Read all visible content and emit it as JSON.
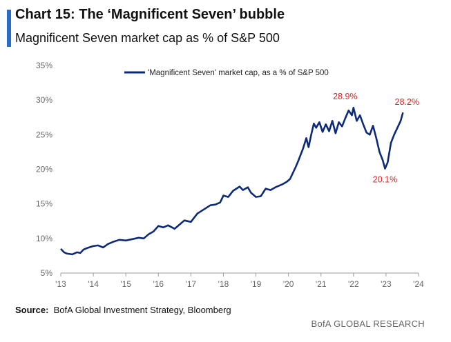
{
  "header": {
    "title": "Chart 15: The ‘Magnificent Seven’ bubble",
    "subtitle": "Magnificent Seven market cap as % of S&P 500"
  },
  "footer": {
    "source_label": "Source:",
    "source_text": "BofA Global Investment Strategy, Bloomberg",
    "brand": "BofA GLOBAL RESEARCH"
  },
  "colors": {
    "accent": "#2a6dc7",
    "line": "#0c2a78",
    "annotation": "#e02020"
  },
  "chart_data": {
    "type": "line",
    "title": "Chart 15: The ‘Magnificent Seven’ bubble",
    "subtitle": "Magnificent Seven market cap as % of S&P 500",
    "ylim": [
      5,
      35
    ],
    "yticks": [
      5,
      10,
      15,
      20,
      25,
      30,
      35
    ],
    "ytick_labels": [
      "5%",
      "10%",
      "15%",
      "20%",
      "25%",
      "30%",
      "35%"
    ],
    "xlim": [
      2013,
      2024
    ],
    "xticks": [
      2013,
      2014,
      2015,
      2016,
      2017,
      2018,
      2019,
      2020,
      2021,
      2022,
      2023,
      2024
    ],
    "xtick_labels": [
      "'13",
      "'14",
      "'15",
      "'16",
      "'17",
      "'18",
      "'19",
      "'20",
      "'21",
      "'22",
      "'23",
      "'24"
    ],
    "grid": false,
    "legend_position": "top",
    "series": [
      {
        "name": "'Magnificent Seven' market cap, as a % of S&P 500",
        "x": [
          2013.0,
          2013.1,
          2013.2,
          2013.35,
          2013.5,
          2013.6,
          2013.7,
          2013.8,
          2014.0,
          2014.15,
          2014.3,
          2014.45,
          2014.6,
          2014.8,
          2015.0,
          2015.2,
          2015.4,
          2015.55,
          2015.7,
          2015.85,
          2016.0,
          2016.15,
          2016.3,
          2016.5,
          2016.65,
          2016.8,
          2017.0,
          2017.2,
          2017.4,
          2017.6,
          2017.75,
          2017.9,
          2018.0,
          2018.15,
          2018.3,
          2018.5,
          2018.6,
          2018.75,
          2018.85,
          2019.0,
          2019.15,
          2019.3,
          2019.45,
          2019.6,
          2019.8,
          2019.95,
          2020.05,
          2020.15,
          2020.22,
          2020.3,
          2020.45,
          2020.55,
          2020.62,
          2020.7,
          2020.78,
          2020.85,
          2020.95,
          2021.05,
          2021.15,
          2021.25,
          2021.35,
          2021.45,
          2021.55,
          2021.65,
          2021.75,
          2021.85,
          2021.95,
          2022.0,
          2022.1,
          2022.2,
          2022.3,
          2022.4,
          2022.5,
          2022.6,
          2022.7,
          2022.8,
          2022.9,
          2022.97,
          2023.05,
          2023.15,
          2023.25,
          2023.35,
          2023.45,
          2023.52
        ],
        "values": [
          8.5,
          8.0,
          7.8,
          7.7,
          8.0,
          7.9,
          8.4,
          8.6,
          8.9,
          9.0,
          8.7,
          9.2,
          9.5,
          9.8,
          9.7,
          9.9,
          10.1,
          10.0,
          10.6,
          11.0,
          11.8,
          11.6,
          11.9,
          11.4,
          12.0,
          12.6,
          12.4,
          13.6,
          14.2,
          14.8,
          14.9,
          15.2,
          16.2,
          16.0,
          16.9,
          17.5,
          17.0,
          17.4,
          16.6,
          16.0,
          16.1,
          17.2,
          17.0,
          17.4,
          17.8,
          18.2,
          18.6,
          19.6,
          20.3,
          21.2,
          23.0,
          24.5,
          23.2,
          25.0,
          26.6,
          26.0,
          26.8,
          25.4,
          26.5,
          25.5,
          27.0,
          25.2,
          26.8,
          26.2,
          27.4,
          28.5,
          27.8,
          28.9,
          27.0,
          27.8,
          26.5,
          25.3,
          25.0,
          26.3,
          24.5,
          22.5,
          21.3,
          20.1,
          21.0,
          23.8,
          25.0,
          26.0,
          27.0,
          28.2
        ]
      }
    ],
    "annotations": [
      {
        "text": "28.9%",
        "x": 2022.0,
        "y": 28.9
      },
      {
        "text": "20.1%",
        "x": 2022.97,
        "y": 20.1
      },
      {
        "text": "28.2%",
        "x": 2023.52,
        "y": 28.2
      }
    ]
  }
}
